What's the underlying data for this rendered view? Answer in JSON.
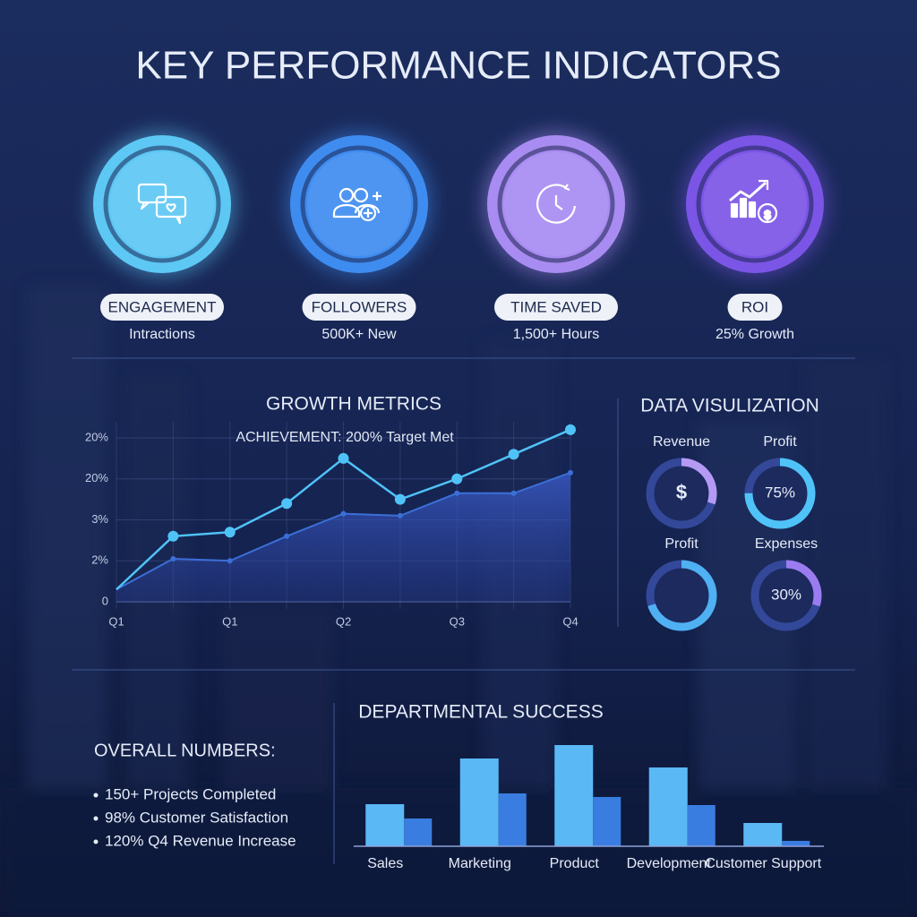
{
  "title": "KEY PERFORMANCE INDICATORS",
  "kpis": [
    {
      "name": "ENGAGEMENT",
      "detail": "Intractions",
      "color": "#5ec8f5"
    },
    {
      "name": "FOLLOWERS",
      "detail": "500K+ New",
      "color": "#3f8cf0"
    },
    {
      "name": "TIME SAVED",
      "detail": "1,500+ Hours",
      "color": "#a98cf2"
    },
    {
      "name": "ROI",
      "detail": "25% Growth",
      "color": "#7b55e6"
    }
  ],
  "overall": {
    "title": "OVERALL NUMBERS:",
    "items": [
      "150+ Projects Completed",
      "98% Customer Satisfaction",
      "120% Q4 Revenue Increase"
    ]
  },
  "chart_data": [
    {
      "type": "line",
      "title": "GROWTH METRICS",
      "annotation": "ACHIEVEMENT: 200% Target Met",
      "categories": [
        "Q1",
        null,
        "Q1",
        null,
        "Q2",
        null,
        "Q3",
        null,
        "Q4"
      ],
      "series": [
        {
          "color": "#4fc3f7",
          "values": [
            0.3,
            1.6,
            1.7,
            2.4,
            3.5,
            2.5,
            3.0,
            3.6,
            4.2
          ]
        },
        {
          "color": "#3b6fd8",
          "values": [
            0.3,
            1.05,
            1.0,
            1.6,
            2.15,
            2.1,
            2.65,
            2.65,
            3.15
          ],
          "area": true
        }
      ],
      "ylim": [
        0,
        4.4
      ],
      "yticks": [
        {
          "value": 0,
          "label": "0"
        },
        {
          "value": 1,
          "label": "2%"
        },
        {
          "value": 2,
          "label": "3%"
        },
        {
          "value": 3,
          "label": "20%"
        },
        {
          "value": 4,
          "label": "20%"
        }
      ],
      "grid": true
    },
    {
      "type": "donut",
      "title": "DATA VISULIZATION",
      "categories": [
        "Revenue",
        "Profit",
        "Profit",
        "Expenses"
      ],
      "values": [
        30,
        75,
        70,
        30
      ],
      "value_labels": [
        null,
        "75%",
        null,
        "30%"
      ],
      "symbols": [
        "$",
        null,
        null,
        null
      ],
      "colors": [
        "#b59af5",
        "#4fc3f7",
        "#4fb0f2",
        "#9b7cf0"
      ]
    },
    {
      "type": "bar",
      "title": "DEPARTMENTAL SUCCESS",
      "categories": [
        "Sales",
        "Marketing",
        "Product",
        "Development",
        "Customer Support"
      ],
      "series": [
        {
          "color": "#5ab8f5",
          "values": [
            47,
            98,
            113,
            88,
            26
          ]
        },
        {
          "color": "#3a7de0",
          "values": [
            31,
            59,
            55,
            46,
            6
          ]
        }
      ],
      "ylim": [
        0,
        120
      ]
    }
  ]
}
